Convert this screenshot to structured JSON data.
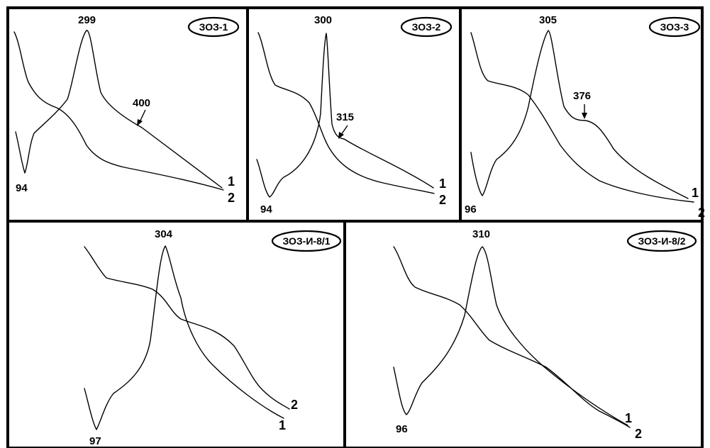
{
  "chart_data": [
    {
      "type": "line",
      "label": "ЗОЗ-1",
      "peaks": [
        {
          "value": "299"
        },
        {
          "value": "94"
        },
        {
          "value": "400"
        }
      ],
      "series": [
        {
          "name": "1"
        },
        {
          "name": "2"
        }
      ]
    },
    {
      "type": "line",
      "label": "ЗОЗ-2",
      "peaks": [
        {
          "value": "300"
        },
        {
          "value": "94"
        },
        {
          "value": "315"
        }
      ],
      "series": [
        {
          "name": "1"
        },
        {
          "name": "2"
        }
      ]
    },
    {
      "type": "line",
      "label": "ЗОЗ-3",
      "peaks": [
        {
          "value": "305"
        },
        {
          "value": "96"
        },
        {
          "value": "376"
        }
      ],
      "series": [
        {
          "name": "1"
        },
        {
          "name": "2"
        }
      ]
    },
    {
      "type": "line",
      "label": "ЗОЗ-И-8/1",
      "peaks": [
        {
          "value": "304"
        },
        {
          "value": "97"
        }
      ],
      "series": [
        {
          "name": "2"
        },
        {
          "name": "1"
        }
      ]
    },
    {
      "type": "line",
      "label": "ЗОЗ-И-8/2",
      "peaks": [
        {
          "value": "310"
        },
        {
          "value": "96"
        }
      ],
      "series": [
        {
          "name": "1"
        },
        {
          "name": "2"
        }
      ]
    }
  ]
}
